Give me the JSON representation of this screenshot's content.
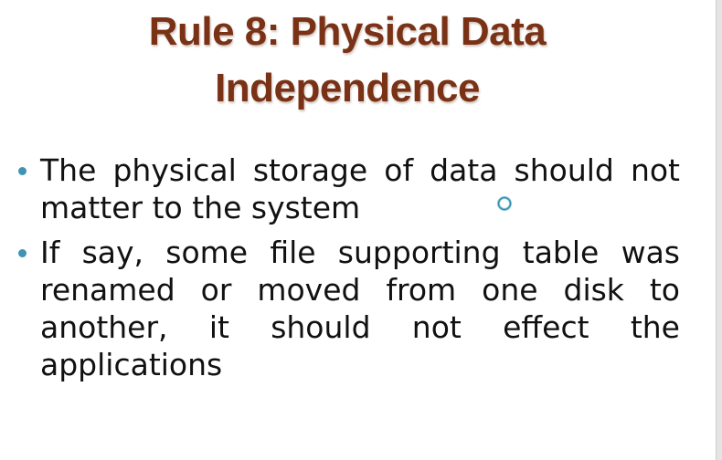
{
  "title": {
    "line1": "Rule 8: Physical Data",
    "line2": "Independence"
  },
  "bullets": [
    {
      "text": "The physical storage of data should not matter to the system"
    },
    {
      "text": "If say, some file supporting table was renamed or moved from one disk to another, it should not effect the applications"
    }
  ],
  "colors": {
    "title": "#7a3216",
    "bullet_dot": "#3f93b5",
    "body_text": "#111111"
  },
  "icons": {
    "cursor": "busy-spinner-icon"
  }
}
